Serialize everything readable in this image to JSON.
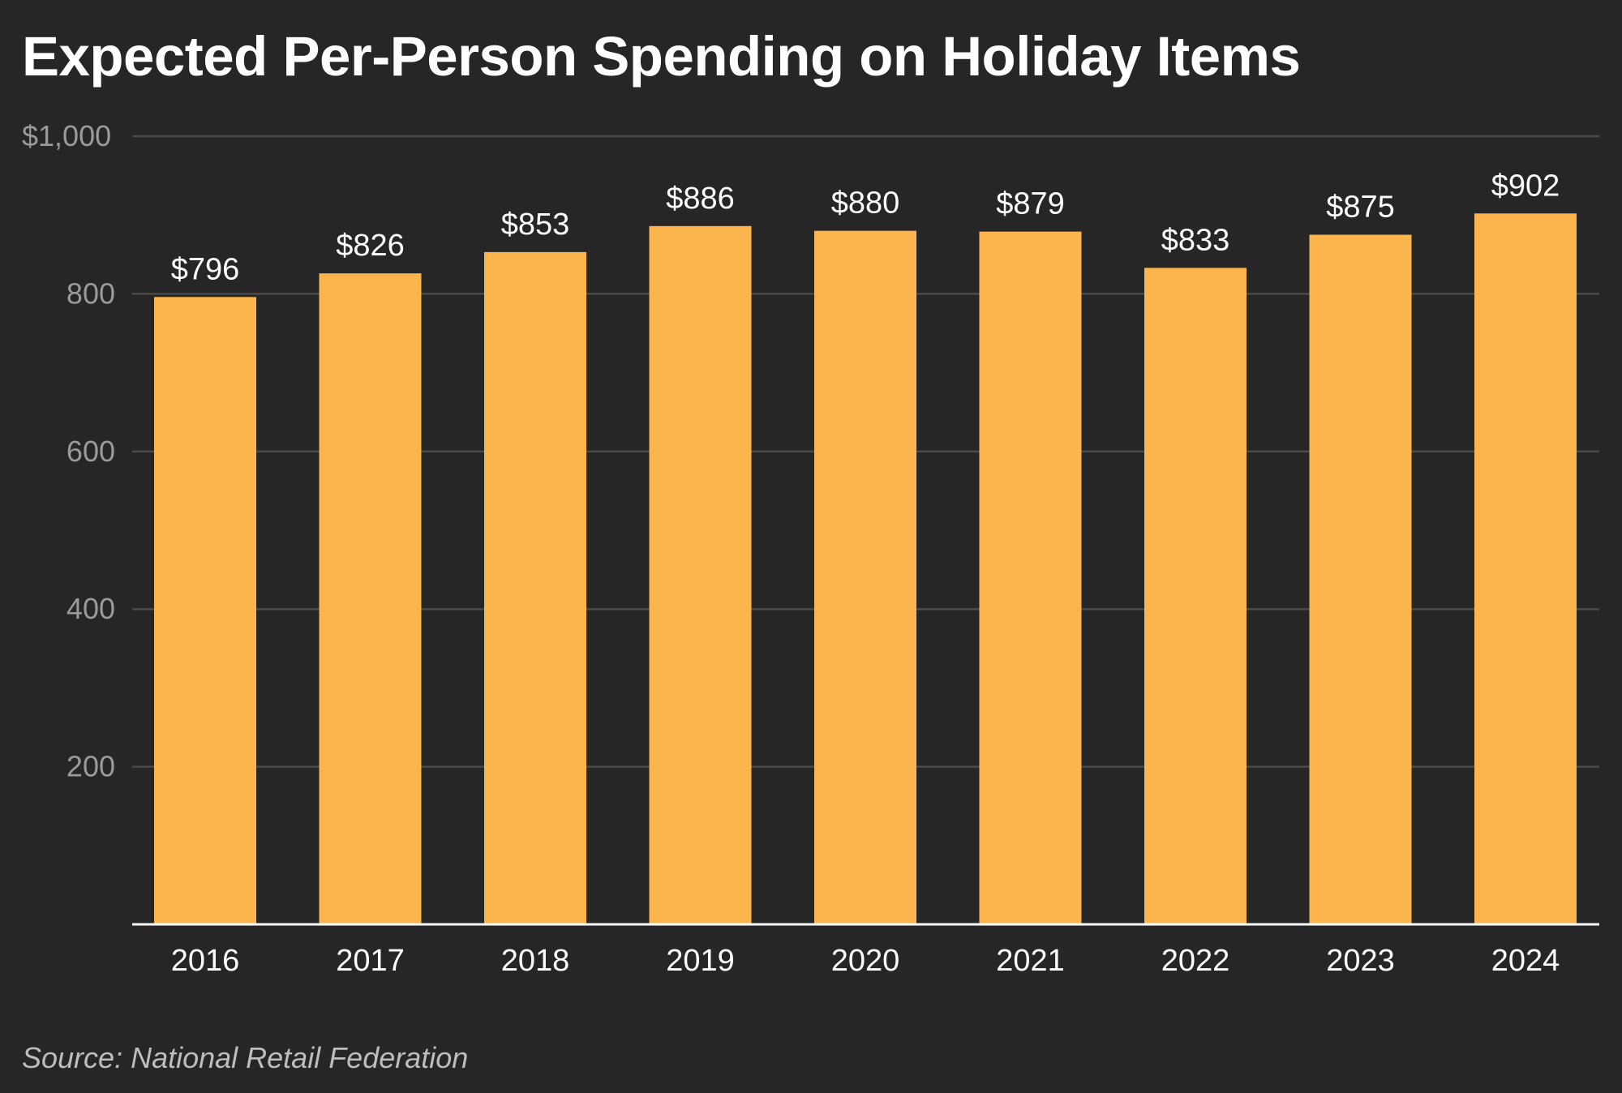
{
  "title": "Expected Per-Person Spending on Holiday Items",
  "source": "Source: National Retail Federation",
  "colors": {
    "background": "#262626",
    "bar": "#fbb54c",
    "grid": "#4a4a4a",
    "axis": "#ffffff",
    "tick_label": "#9a9a9a",
    "category_label": "#ffffff",
    "data_label": "#ffffff"
  },
  "chart_data": {
    "type": "bar",
    "title": "Expected Per-Person Spending on Holiday Items",
    "xlabel": "",
    "ylabel": "",
    "categories": [
      "2016",
      "2017",
      "2018",
      "2019",
      "2020",
      "2021",
      "2022",
      "2023",
      "2024"
    ],
    "values": [
      796,
      826,
      853,
      886,
      880,
      879,
      833,
      875,
      902
    ],
    "data_labels": [
      "$796",
      "$826",
      "$853",
      "$886",
      "$880",
      "$879",
      "$833",
      "$875",
      "$902"
    ],
    "ylim": [
      0,
      1000
    ],
    "yticks": [
      200,
      400,
      600,
      800,
      1000
    ],
    "ytick_labels": [
      "200",
      "400",
      "600",
      "800",
      "$1,000"
    ],
    "grid": true,
    "legend": "none"
  }
}
